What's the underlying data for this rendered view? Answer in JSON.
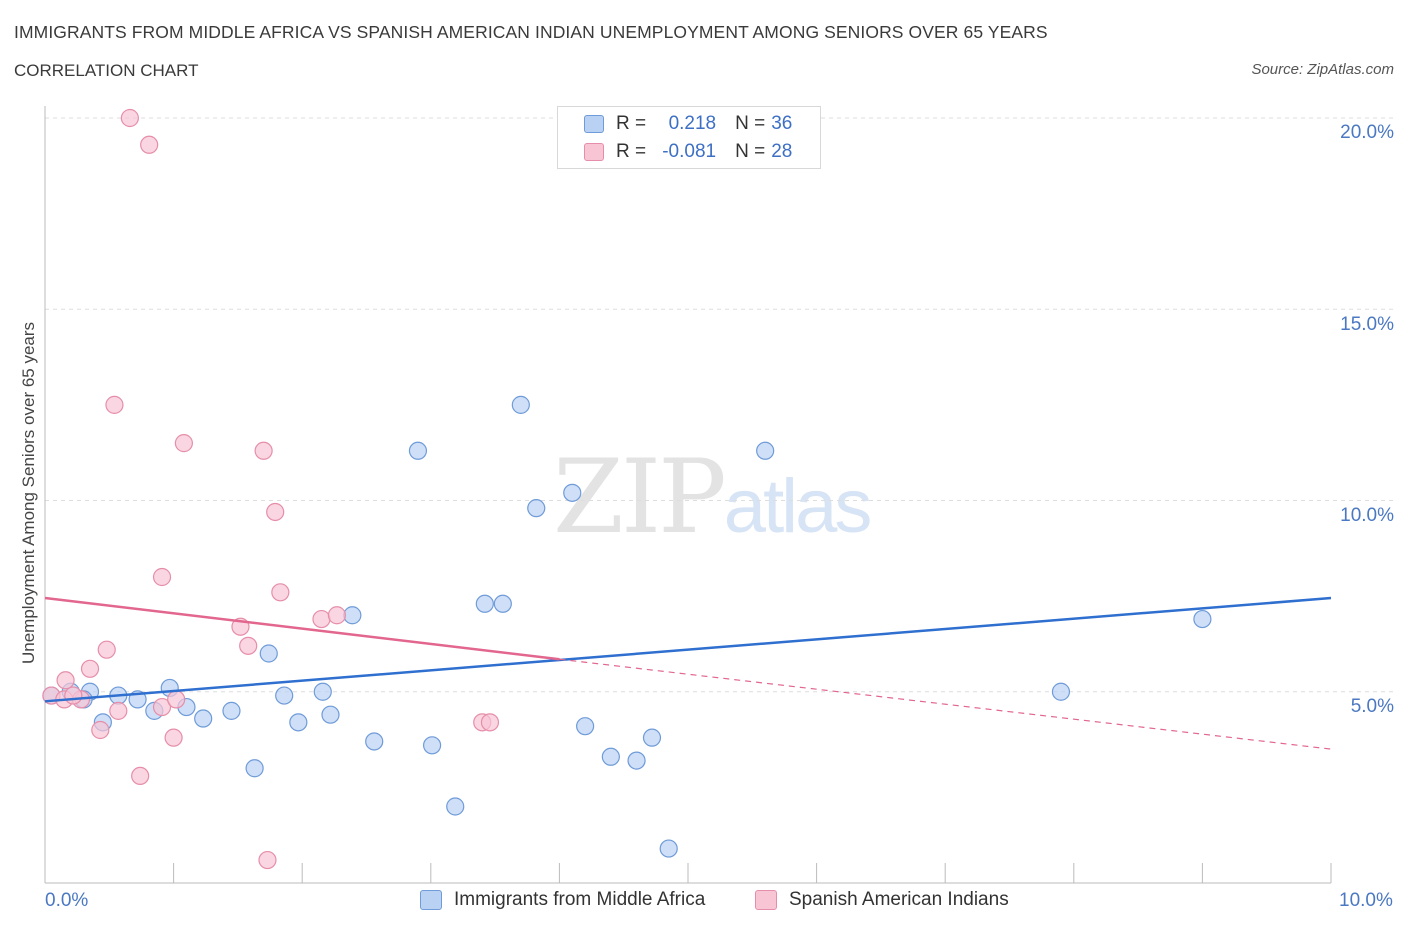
{
  "title": "IMMIGRANTS FROM MIDDLE AFRICA VS SPANISH AMERICAN INDIAN UNEMPLOYMENT AMONG SENIORS OVER 65 YEARS",
  "subtitle": "CORRELATION CHART",
  "source": "Source: ZipAtlas.com",
  "watermark": {
    "zip": "ZIP",
    "atlas": "atlas"
  },
  "colors": {
    "blue_fill": "#b9d1f3",
    "blue_stroke": "#6f9bd8",
    "blue_line": "#2f6fcf",
    "pink_fill": "#f8c5d5",
    "pink_stroke": "#e68ea9",
    "pink_line": "#e2668e",
    "grid": "#dddddd",
    "tick_text": "#4a78c2"
  },
  "legend": {
    "r_label": "R =",
    "n_label": "N =",
    "blue": {
      "r": "0.218",
      "n": "36"
    },
    "pink": {
      "r": "-0.081",
      "n": "28"
    }
  },
  "chart_data": {
    "type": "scatter",
    "title": "IMMIGRANTS FROM MIDDLE AFRICA VS SPANISH AMERICAN INDIAN UNEMPLOYMENT AMONG SENIORS OVER 65 YEARS",
    "xlabel": "",
    "ylabel": "Unemployment Among Seniors over 65 years",
    "xlim": [
      0,
      10
    ],
    "ylim": [
      0,
      20
    ],
    "x_tick_labels": [
      "0.0%",
      "10.0%"
    ],
    "y_ticks": [
      5,
      10,
      15,
      20
    ],
    "y_tick_labels": [
      "5.0%",
      "10.0%",
      "15.0%",
      "20.0%"
    ],
    "series": [
      {
        "name": "Immigrants from Middle Africa",
        "color": "blue",
        "points": [
          [
            0.05,
            4.9
          ],
          [
            0.2,
            5.0
          ],
          [
            0.35,
            5.0
          ],
          [
            0.45,
            4.2
          ],
          [
            0.57,
            4.9
          ],
          [
            0.72,
            4.8
          ],
          [
            0.85,
            4.5
          ],
          [
            0.97,
            5.1
          ],
          [
            1.1,
            4.6
          ],
          [
            1.23,
            4.3
          ],
          [
            1.45,
            4.5
          ],
          [
            1.63,
            3.0
          ],
          [
            1.74,
            6.0
          ],
          [
            1.86,
            4.9
          ],
          [
            1.97,
            4.2
          ],
          [
            2.16,
            5.0
          ],
          [
            2.22,
            4.4
          ],
          [
            2.39,
            7.0
          ],
          [
            2.56,
            3.7
          ],
          [
            2.9,
            11.3
          ],
          [
            3.01,
            3.6
          ],
          [
            3.19,
            2.0
          ],
          [
            3.42,
            7.3
          ],
          [
            3.56,
            7.3
          ],
          [
            3.7,
            12.5
          ],
          [
            3.82,
            9.8
          ],
          [
            4.1,
            10.2
          ],
          [
            4.2,
            4.1
          ],
          [
            4.4,
            3.3
          ],
          [
            4.6,
            3.2
          ],
          [
            4.72,
            3.8
          ],
          [
            4.85,
            0.9
          ],
          [
            5.6,
            11.3
          ],
          [
            7.9,
            5.0
          ],
          [
            9.0,
            6.9
          ],
          [
            0.3,
            4.8
          ]
        ],
        "trend": {
          "x0": 0,
          "y0": 4.75,
          "x1": 10,
          "y1": 7.45
        }
      },
      {
        "name": "Spanish American Indians",
        "color": "pink",
        "points": [
          [
            0.05,
            4.9
          ],
          [
            0.15,
            4.8
          ],
          [
            0.28,
            4.8
          ],
          [
            0.35,
            5.6
          ],
          [
            0.43,
            4.0
          ],
          [
            0.48,
            6.1
          ],
          [
            0.57,
            4.5
          ],
          [
            0.54,
            12.5
          ],
          [
            0.66,
            20.0
          ],
          [
            0.74,
            2.8
          ],
          [
            0.81,
            19.3
          ],
          [
            0.91,
            4.6
          ],
          [
            0.91,
            8.0
          ],
          [
            1.0,
            3.8
          ],
          [
            1.02,
            4.8
          ],
          [
            1.08,
            11.5
          ],
          [
            1.52,
            6.7
          ],
          [
            1.58,
            6.2
          ],
          [
            1.7,
            11.3
          ],
          [
            1.73,
            0.6
          ],
          [
            1.79,
            9.7
          ],
          [
            1.83,
            7.6
          ],
          [
            2.15,
            6.9
          ],
          [
            2.27,
            7.0
          ],
          [
            3.4,
            4.2
          ],
          [
            3.46,
            4.2
          ],
          [
            0.16,
            5.3
          ],
          [
            0.22,
            4.9
          ]
        ],
        "trend": {
          "x0": 0,
          "y0": 7.45,
          "x1": 4.0,
          "y1": 5.85
        },
        "trend_dashed": {
          "x0": 4.0,
          "y0": 5.85,
          "x1": 10,
          "y1": 3.5
        }
      }
    ]
  }
}
